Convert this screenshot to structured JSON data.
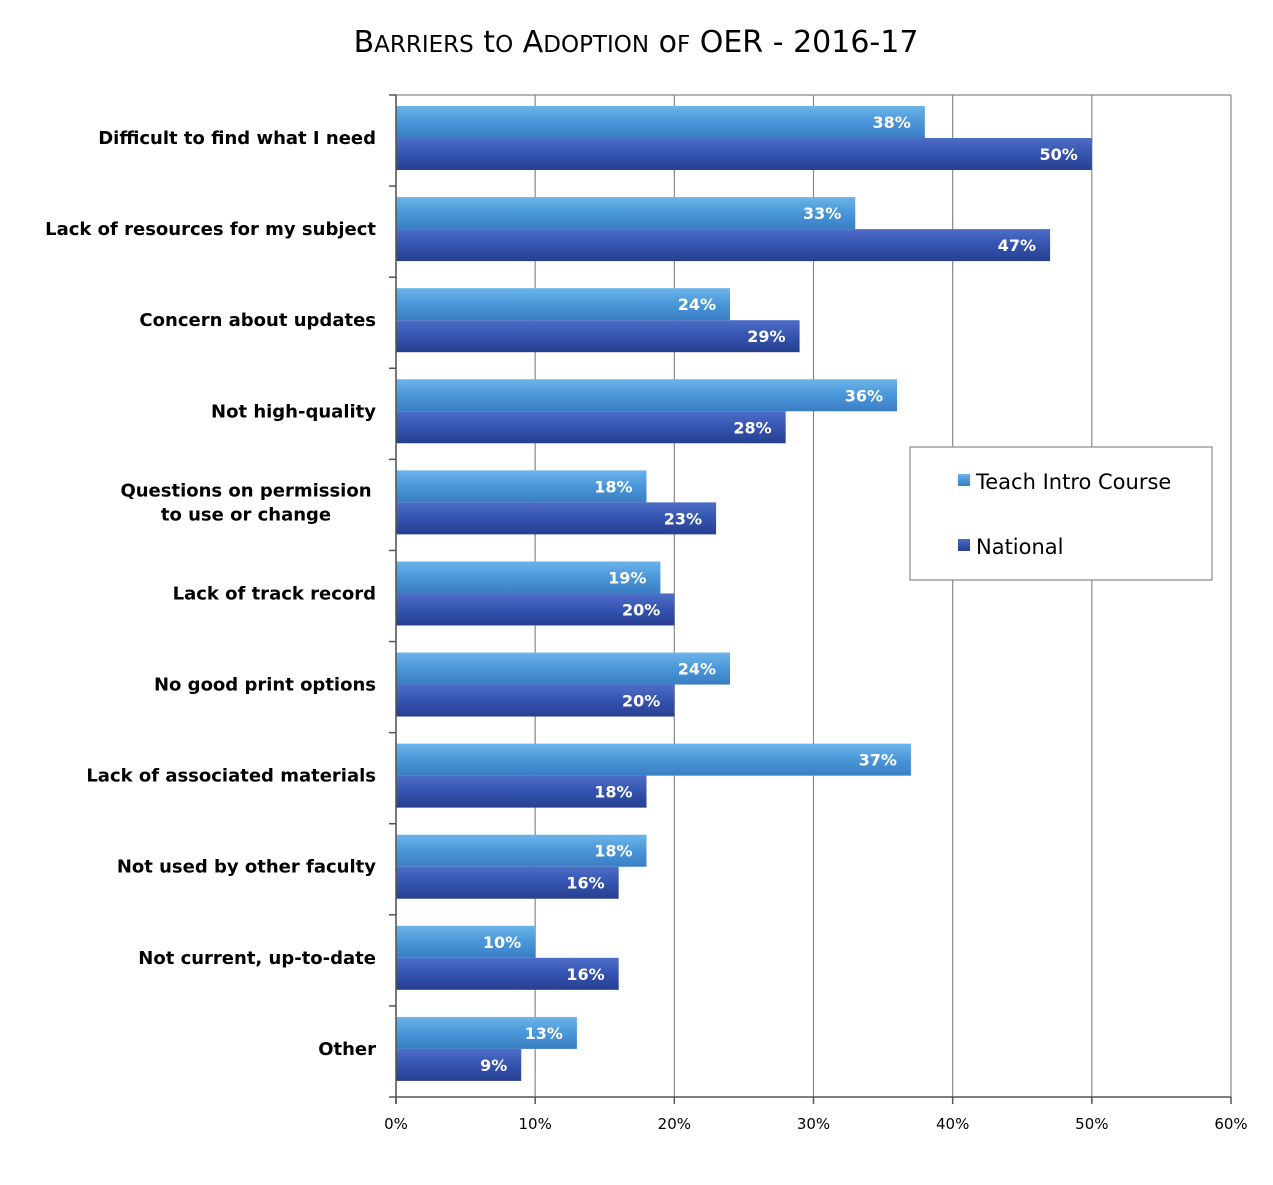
{
  "chart_data": {
    "type": "bar",
    "orientation": "horizontal",
    "title": "Barriers to Adoption of OER - 2016-17",
    "categories": [
      [
        "Difficult to find what I need"
      ],
      [
        "Lack of resources for my subject"
      ],
      [
        "Concern about updates"
      ],
      [
        "Not high-quality"
      ],
      [
        "Questions on permission",
        "to use or change"
      ],
      [
        "Lack of track record"
      ],
      [
        "No good print options"
      ],
      [
        "Lack of associated materials"
      ],
      [
        "Not used by other faculty"
      ],
      [
        "Not current, up-to-date"
      ],
      [
        "Other"
      ]
    ],
    "series": [
      {
        "name": "Teach Intro Course",
        "color": "#4a90d0",
        "values": [
          38,
          33,
          24,
          36,
          18,
          19,
          24,
          37,
          18,
          10,
          13
        ]
      },
      {
        "name": "National",
        "color": "#2f4fa8",
        "values": [
          50,
          47,
          29,
          28,
          23,
          20,
          20,
          18,
          16,
          16,
          9
        ]
      }
    ],
    "value_suffix": "%",
    "xlim": [
      0,
      60
    ],
    "xticks": [
      "0%",
      "10%",
      "20%",
      "30%",
      "40%",
      "50%",
      "60%"
    ],
    "grid": true,
    "legend_position": "right"
  }
}
